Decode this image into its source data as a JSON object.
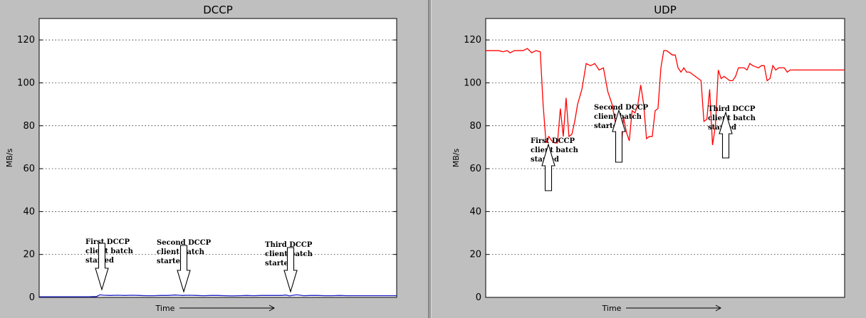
{
  "chart_data": [
    {
      "type": "line",
      "title": "DCCP",
      "xlabel": "Time",
      "ylabel": "MB/s",
      "ylim": [
        0,
        130
      ],
      "yticks": [
        0,
        20,
        40,
        60,
        80,
        100,
        120
      ],
      "grid": true,
      "series": [
        {
          "color": "#1f1fbf",
          "x": [
            0,
            10,
            20,
            30,
            40,
            50,
            60,
            70,
            80,
            85,
            90,
            100,
            110,
            120,
            130,
            140,
            150,
            160,
            170,
            180,
            190,
            200,
            210,
            220,
            230,
            240,
            250,
            260,
            270,
            280,
            290,
            300,
            310,
            320,
            330,
            340,
            345,
            350,
            360,
            370,
            380,
            390,
            400,
            410,
            420,
            430,
            440,
            450,
            460,
            470,
            480,
            490,
            500
          ],
          "y": [
            0.3,
            0.3,
            0.3,
            0.3,
            0.3,
            0.3,
            0.3,
            0.3,
            0.4,
            1.2,
            1.0,
            0.9,
            1.0,
            0.9,
            1.0,
            0.9,
            0.8,
            0.8,
            0.9,
            0.9,
            1.1,
            0.9,
            1.0,
            0.9,
            0.8,
            0.9,
            0.9,
            0.8,
            0.7,
            0.8,
            0.9,
            0.8,
            0.9,
            0.9,
            0.9,
            0.9,
            1.1,
            0.7,
            1.2,
            0.8,
            0.9,
            0.9,
            0.8,
            0.8,
            0.9,
            0.8,
            0.8,
            0.8,
            0.8,
            0.8,
            0.8,
            0.8,
            0.8
          ]
        }
      ],
      "annotations": [
        {
          "lines": [
            "First DCCP",
            "client batch",
            "started"
          ],
          "direction": "down",
          "x": 88
        },
        {
          "lines": [
            "Second DCCP",
            "client batch",
            "started"
          ],
          "direction": "down",
          "x": 203
        },
        {
          "lines": [
            "Third DCCP",
            "client batch",
            "started"
          ],
          "direction": "down",
          "x": 353
        }
      ]
    },
    {
      "type": "line",
      "title": "UDP",
      "xlabel": "Time",
      "ylabel": "MB/s",
      "ylim": [
        0,
        130
      ],
      "yticks": [
        0,
        20,
        40,
        60,
        80,
        100,
        120
      ],
      "grid": true,
      "series": [
        {
          "color": "#ff0000",
          "x": [
            0,
            6,
            12,
            18,
            24,
            30,
            34,
            40,
            46,
            52,
            58,
            64,
            70,
            76,
            80,
            84,
            88,
            92,
            96,
            100,
            104,
            108,
            112,
            116,
            120,
            124,
            128,
            134,
            140,
            146,
            152,
            158,
            164,
            170,
            176,
            180,
            184,
            188,
            192,
            196,
            200,
            204,
            208,
            212,
            216,
            220,
            224,
            228,
            232,
            236,
            240,
            244,
            248,
            252,
            256,
            260,
            264,
            268,
            272,
            276,
            280,
            284,
            288,
            292,
            296,
            300,
            304,
            308,
            312,
            316,
            320,
            324,
            328,
            332,
            336,
            340,
            344,
            348,
            352,
            356,
            360,
            364,
            368,
            372,
            376,
            380,
            384,
            388,
            392,
            396,
            400,
            404,
            408,
            412,
            416,
            420,
            424,
            428,
            432,
            436,
            440,
            444,
            448,
            452,
            456,
            460,
            464,
            468,
            472,
            476,
            480,
            484,
            488,
            492,
            496,
            500
          ],
          "y": [
            115,
            115,
            115,
            115,
            114.5,
            115,
            114,
            115,
            115,
            115,
            116,
            114,
            115,
            114.5,
            90,
            72,
            75,
            73,
            72,
            72,
            88,
            75,
            93,
            75,
            76,
            82,
            90,
            97,
            109,
            108,
            109,
            106,
            107,
            96,
            90,
            83,
            72,
            65,
            84,
            77,
            73,
            87,
            86,
            90,
            99,
            90,
            74,
            75,
            75,
            87,
            88,
            107,
            115,
            115,
            114,
            113,
            113,
            107,
            105,
            107,
            105,
            105,
            104,
            103,
            102,
            101,
            82,
            83,
            97,
            71,
            80,
            106,
            102,
            103,
            102,
            101,
            101,
            103,
            107,
            107,
            107,
            106,
            109,
            108,
            107.5,
            107,
            108,
            108,
            101,
            102,
            108,
            106,
            107,
            107,
            107,
            105,
            106,
            106,
            106,
            106,
            106,
            106,
            106,
            106,
            106,
            106,
            106,
            106,
            106,
            106,
            106,
            106,
            106,
            106,
            106,
            106
          ]
        }
      ],
      "annotations": [
        {
          "lines": [
            "First DCCP",
            "client batch",
            "started"
          ],
          "direction": "up",
          "x": 88
        },
        {
          "lines": [
            "Second DCCP",
            "client batch",
            "started"
          ],
          "direction": "up",
          "x": 186
        },
        {
          "lines": [
            "Third DCCP",
            "client batch",
            "started"
          ],
          "direction": "up",
          "x": 336
        }
      ]
    }
  ]
}
